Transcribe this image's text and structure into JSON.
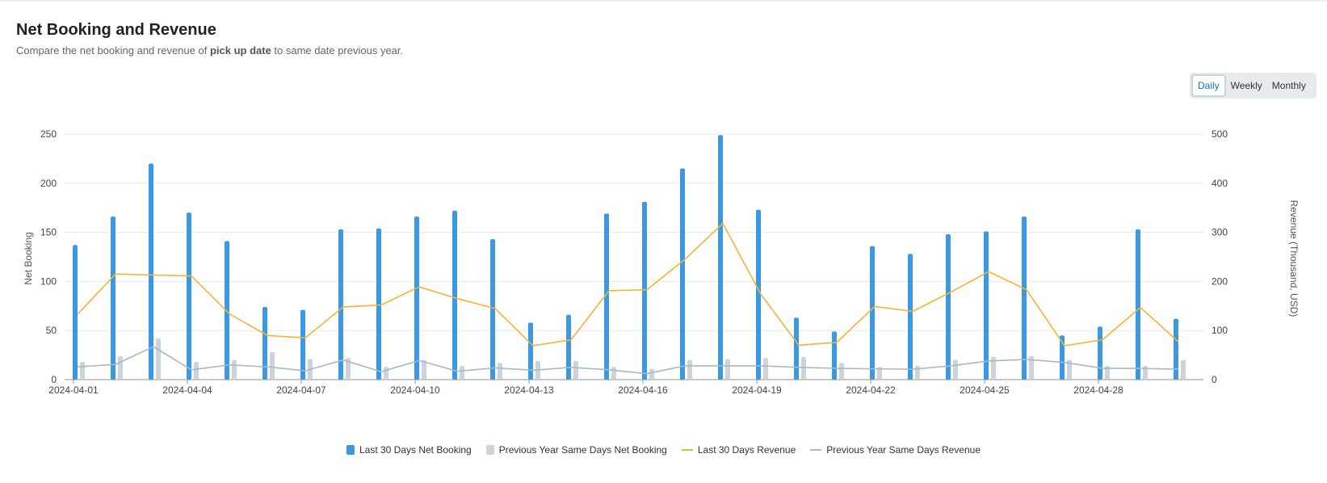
{
  "header": {
    "title": "Net Booking and Revenue",
    "subtitle_pre": "Compare the net booking and revenue of ",
    "subtitle_bold": "pick up date",
    "subtitle_post": " to same date previous year."
  },
  "toggle": {
    "options": [
      "Daily",
      "Weekly",
      "Monthly"
    ],
    "selected": "Daily"
  },
  "colors": {
    "current_bar": "#3b99e3",
    "previous_bar": "#cdd3da",
    "current_line": "#f5b335",
    "previous_line": "#a8b8c8"
  },
  "chart_data": {
    "type": "bar",
    "categories": [
      "2024-04-01",
      "2024-04-02",
      "2024-04-03",
      "2024-04-04",
      "2024-04-05",
      "2024-04-06",
      "2024-04-07",
      "2024-04-08",
      "2024-04-09",
      "2024-04-10",
      "2024-04-11",
      "2024-04-12",
      "2024-04-13",
      "2024-04-14",
      "2024-04-15",
      "2024-04-16",
      "2024-04-17",
      "2024-04-18",
      "2024-04-19",
      "2024-04-20",
      "2024-04-21",
      "2024-04-22",
      "2024-04-23",
      "2024-04-24",
      "2024-04-25",
      "2024-04-26",
      "2024-04-27",
      "2024-04-28",
      "2024-04-29",
      "2024-04-30"
    ],
    "x_tick_labels": [
      "2024-04-01",
      "2024-04-04",
      "2024-04-07",
      "2024-04-10",
      "2024-04-13",
      "2024-04-16",
      "2024-04-19",
      "2024-04-22",
      "2024-04-25",
      "2024-04-28"
    ],
    "ylabel": "Net Booking",
    "y2label": "Revenue (Thousand, USD)",
    "ylim": [
      0,
      250
    ],
    "y2lim": [
      0,
      500
    ],
    "yticks": [
      0,
      50,
      100,
      150,
      200,
      250
    ],
    "y2ticks": [
      0,
      100,
      200,
      300,
      400,
      500
    ],
    "grid": true,
    "legend_position": "bottom-center",
    "series": [
      {
        "name": "Last 30 Days Net Booking",
        "type": "bar",
        "axis": "left",
        "values": [
          137,
          166,
          220,
          170,
          141,
          74,
          71,
          153,
          154,
          166,
          172,
          143,
          58,
          66,
          169,
          181,
          215,
          249,
          173,
          63,
          49,
          136,
          128,
          148,
          151,
          166,
          45,
          54,
          153,
          62
        ]
      },
      {
        "name": "Previous Year Same Days Net Booking",
        "type": "bar",
        "axis": "left",
        "values": [
          18,
          24,
          42,
          18,
          20,
          28,
          21,
          22,
          13,
          20,
          14,
          17,
          19,
          19,
          13,
          11,
          20,
          21,
          22,
          23,
          17,
          13,
          14,
          20,
          23,
          24,
          20,
          14,
          14,
          20
        ]
      },
      {
        "name": "Last 30 Days Revenue",
        "type": "line",
        "axis": "right",
        "values": [
          133,
          215,
          213,
          211,
          134,
          90,
          85,
          148,
          152,
          189,
          165,
          145,
          69,
          81,
          181,
          183,
          245,
          318,
          174,
          70,
          76,
          149,
          139,
          178,
          220,
          183,
          69,
          81,
          147,
          77
        ]
      },
      {
        "name": "Previous Year Same Days Revenue",
        "type": "line",
        "axis": "right",
        "values": [
          26,
          31,
          67,
          20,
          30,
          26,
          18,
          40,
          16,
          39,
          17,
          24,
          19,
          25,
          20,
          12,
          28,
          28,
          28,
          25,
          23,
          22,
          21,
          28,
          38,
          41,
          35,
          23,
          23,
          21
        ]
      }
    ]
  }
}
